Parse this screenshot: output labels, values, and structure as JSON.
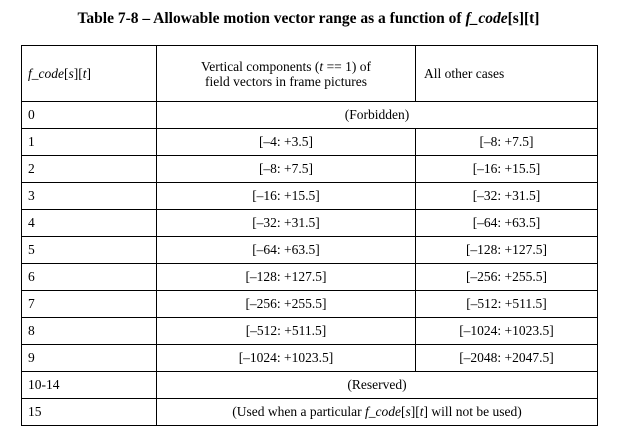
{
  "title": {
    "prefix": "Table 7-8 – Allowable motion vector range as a function of ",
    "func": "f_code",
    "idx1": "[s]",
    "idx2": "[t]"
  },
  "header": {
    "col1_func": "f_code",
    "col1_s": "s",
    "col1_t": "t",
    "col2_line1_a": "Vertical components (",
    "col2_line1_t": "t",
    "col2_line1_b": " == 1) of",
    "col2_line2": "field vectors in frame pictures",
    "col3": "All other cases"
  },
  "rows": [
    {
      "code": "0",
      "span": "(Forbidden)"
    },
    {
      "code": "1",
      "vertical": "[–4: +3.5]",
      "other": "[–8: +7.5]"
    },
    {
      "code": "2",
      "vertical": "[–8: +7.5]",
      "other": "[–16: +15.5]"
    },
    {
      "code": "3",
      "vertical": "[–16: +15.5]",
      "other": "[–32: +31.5]"
    },
    {
      "code": "4",
      "vertical": "[–32: +31.5]",
      "other": "[–64: +63.5]"
    },
    {
      "code": "5",
      "vertical": "[–64: +63.5]",
      "other": "[–128: +127.5]"
    },
    {
      "code": "6",
      "vertical": "[–128: +127.5]",
      "other": "[–256: +255.5]"
    },
    {
      "code": "7",
      "vertical": "[–256: +255.5]",
      "other": "[–512: +511.5]"
    },
    {
      "code": "8",
      "vertical": "[–512: +511.5]",
      "other": "[–1024: +1023.5]"
    },
    {
      "code": "9",
      "vertical": "[–1024: +1023.5]",
      "other": "[–2048: +2047.5]"
    },
    {
      "code": "10-14",
      "span": "(Reserved)"
    },
    {
      "code": "15",
      "span_a": "(Used when a particular ",
      "span_func": "f_code",
      "span_s": "s",
      "span_t": "t",
      "span_b": " will not be used)"
    }
  ]
}
